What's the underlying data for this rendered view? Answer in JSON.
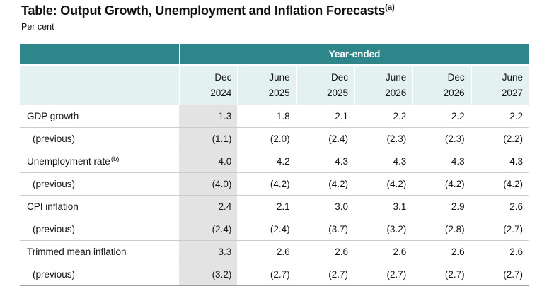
{
  "header": {
    "title": "Table: Output Growth, Unemployment and Inflation Forecasts",
    "title_note": "(a)",
    "subtitle": "Per cent"
  },
  "table": {
    "span_header": "Year-ended",
    "columns": [
      {
        "period": "Dec",
        "year": "2024"
      },
      {
        "period": "June",
        "year": "2025"
      },
      {
        "period": "Dec",
        "year": "2025"
      },
      {
        "period": "June",
        "year": "2026"
      },
      {
        "period": "Dec",
        "year": "2026"
      },
      {
        "period": "June",
        "year": "2027"
      }
    ],
    "rows": [
      {
        "label": "GDP growth",
        "note": "",
        "indent": false,
        "values": [
          "1.3",
          "1.8",
          "2.1",
          "2.2",
          "2.2",
          "2.2"
        ]
      },
      {
        "label": "(previous)",
        "note": "",
        "indent": true,
        "values": [
          "(1.1)",
          "(2.0)",
          "(2.4)",
          "(2.3)",
          "(2.3)",
          "(2.2)"
        ]
      },
      {
        "label": "Unemployment rate",
        "note": "(b)",
        "indent": false,
        "values": [
          "4.0",
          "4.2",
          "4.3",
          "4.3",
          "4.3",
          "4.3"
        ]
      },
      {
        "label": "(previous)",
        "note": "",
        "indent": true,
        "values": [
          "(4.0)",
          "(4.2)",
          "(4.2)",
          "(4.2)",
          "(4.2)",
          "(4.2)"
        ]
      },
      {
        "label": "CPI inflation",
        "note": "",
        "indent": false,
        "values": [
          "2.4",
          "2.1",
          "3.0",
          "3.1",
          "2.9",
          "2.6"
        ]
      },
      {
        "label": "(previous)",
        "note": "",
        "indent": true,
        "values": [
          "(2.4)",
          "(2.4)",
          "(3.7)",
          "(3.2)",
          "(2.8)",
          "(2.7)"
        ]
      },
      {
        "label": "Trimmed mean inflation",
        "note": "",
        "indent": false,
        "values": [
          "3.3",
          "2.6",
          "2.6",
          "2.6",
          "2.6",
          "2.6"
        ]
      },
      {
        "label": "(previous)",
        "note": "",
        "indent": true,
        "values": [
          "(3.2)",
          "(2.7)",
          "(2.7)",
          "(2.7)",
          "(2.7)",
          "(2.7)"
        ]
      }
    ],
    "shaded_column_index": 0,
    "colors": {
      "teal_band": "#2e868b",
      "column_header_bg": "#e4f1f1",
      "shaded_column": "#e3e3e3",
      "row_rule": "#cbcbcb",
      "bottom_rule": "#9e9e9e",
      "text": "#141414"
    }
  }
}
